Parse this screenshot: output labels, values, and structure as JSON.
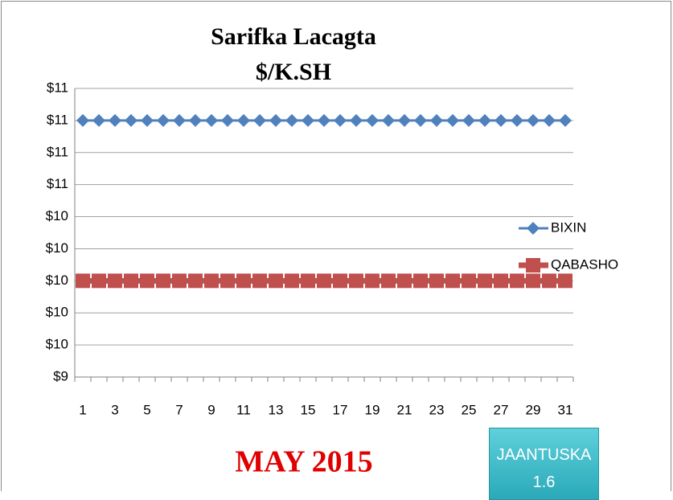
{
  "chart_data": {
    "type": "line",
    "title": [
      "Sarifka Lacagta",
      "$/K.SH"
    ],
    "footer": "MAY 2015",
    "button": "JAANTUSKA 1.6",
    "categories": [
      1,
      null,
      3,
      null,
      5,
      null,
      7,
      null,
      9,
      null,
      11,
      null,
      13,
      null,
      15,
      null,
      17,
      null,
      19,
      null,
      21,
      null,
      23,
      null,
      25,
      null,
      27,
      null,
      29,
      null,
      31
    ],
    "series": [
      {
        "name": "BIXIN",
        "color": "#4f81bd",
        "marker": "diamond",
        "values": [
          11,
          11,
          11,
          11,
          11,
          11,
          11,
          11,
          11,
          11,
          11,
          11,
          11,
          11,
          11,
          11,
          11,
          11,
          11,
          11,
          11,
          11,
          11,
          11,
          11,
          11,
          11,
          11,
          11,
          11,
          11
        ]
      },
      {
        "name": "QABASHO",
        "color": "#c0504d",
        "marker": "square",
        "values": [
          10,
          10,
          10,
          10,
          10,
          10,
          10,
          10,
          10,
          10,
          10,
          10,
          10,
          10,
          10,
          10,
          10,
          10,
          10,
          10,
          10,
          10,
          10,
          10,
          10,
          10,
          10,
          10,
          10,
          10,
          10
        ]
      }
    ],
    "ylim": [
      9.4,
      11.2
    ],
    "yticks": [
      {
        "value": 9.4,
        "label": "$9"
      },
      {
        "value": 9.6,
        "label": "$10"
      },
      {
        "value": 9.8,
        "label": "$10"
      },
      {
        "value": 10.0,
        "label": "$10"
      },
      {
        "value": 10.2,
        "label": "$10"
      },
      {
        "value": 10.4,
        "label": "$10"
      },
      {
        "value": 10.6,
        "label": "$11"
      },
      {
        "value": 10.8,
        "label": "$11"
      },
      {
        "value": 11.0,
        "label": "$11"
      },
      {
        "value": 11.2,
        "label": "$11"
      }
    ],
    "grid": true,
    "legend": "right"
  }
}
